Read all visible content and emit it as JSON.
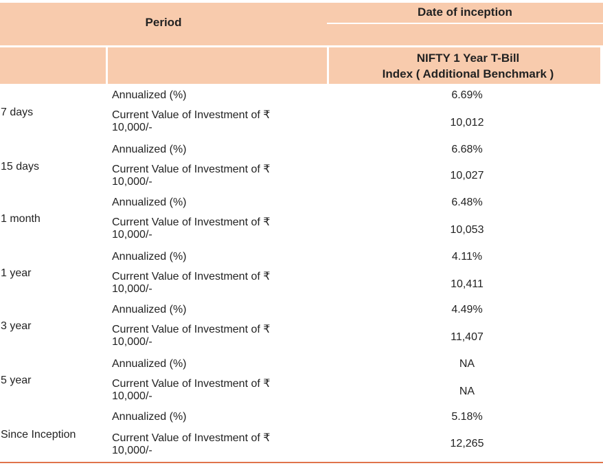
{
  "header": {
    "period_label": "Period",
    "date_label": "Date of inception",
    "benchmark_line1": "NIFTY 1 Year T-Bill",
    "benchmark_line2": "Index ( Additional Benchmark )"
  },
  "rows": [
    {
      "period": "7 days",
      "annualized_label": "Annualized (%)",
      "annualized_value": "6.69%",
      "cv_label_1": "Current Value of Investment of ₹",
      "cv_label_2": "10,000/-",
      "cv_value": "10,012"
    },
    {
      "period": "15 days",
      "annualized_label": "Annualized (%)",
      "annualized_value": "6.68%",
      "cv_label_1": "Current Value of Investment of ₹",
      "cv_label_2": "10,000/-",
      "cv_value": "10,027"
    },
    {
      "period": "1 month",
      "annualized_label": "Annualized (%)",
      "annualized_value": "6.48%",
      "cv_label_1": "Current Value of Investment of ₹",
      "cv_label_2": "10,000/-",
      "cv_value": "10,053"
    },
    {
      "period": "1 year",
      "annualized_label": "Annualized (%)",
      "annualized_value": "4.11%",
      "cv_label_1": "Current Value of Investment of ₹",
      "cv_label_2": "10,000/-",
      "cv_value": "10,411"
    },
    {
      "period": "3 year",
      "annualized_label": "Annualized (%)",
      "annualized_value": "4.49%",
      "cv_label_1": "Current Value of Investment of ₹",
      "cv_label_2": "10,000/-",
      "cv_value": "11,407"
    },
    {
      "period": "5 year",
      "annualized_label": "Annualized (%)",
      "annualized_value": "NA",
      "cv_label_1": "Current Value of Investment of ₹",
      "cv_label_2": "10,000/-",
      "cv_value": "NA"
    },
    {
      "period": "Since Inception",
      "annualized_label": "Annualized (%)",
      "annualized_value": "5.18%",
      "cv_label_1": "Current Value of Investment of ₹",
      "cv_label_2": "10,000/-",
      "cv_value": "12,265"
    }
  ],
  "colors": {
    "header_bg": "#f8cbad",
    "rule": "#e0734a"
  }
}
